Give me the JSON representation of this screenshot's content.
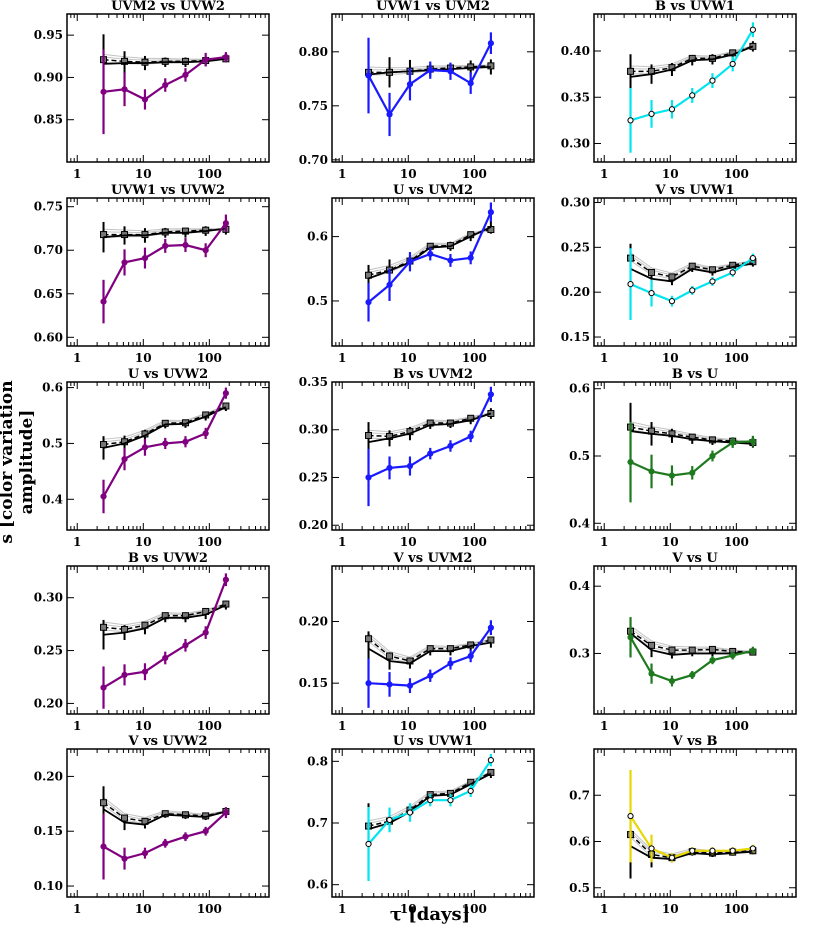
{
  "figure": {
    "ylabel": "s [color variation amplitude]",
    "xlabel": "τ [days]"
  },
  "colors": {
    "purple": "#800080",
    "blue": "#1a1aff",
    "cyan": "#00e5ee",
    "green": "#1f7a1f",
    "yellow": "#e6d800",
    "black": "#000000",
    "gray": "#aaaaaa"
  },
  "chart_data": [
    {
      "type": "line",
      "title": "UVM2 vs UVW2",
      "color": "purple",
      "ylim": [
        0.8,
        0.975
      ],
      "yticks": [
        "0.85",
        "0.90",
        "0.95"
      ],
      "xlim": [
        0.7,
        800
      ],
      "xticks": [
        "1",
        "10",
        "100"
      ],
      "tau": [
        2.5,
        5.2,
        10.6,
        21.5,
        43.5,
        88,
        178
      ],
      "series": [
        {
          "name": "sample",
          "values": [
            0.883,
            0.886,
            0.874,
            0.891,
            0.903,
            0.921,
            0.924
          ],
          "err": [
            0.05,
            0.02,
            0.012,
            0.008,
            0.008,
            0.008,
            0.006
          ]
        },
        {
          "name": "model-solid",
          "values": [
            0.916,
            0.917,
            0.917,
            0.918,
            0.918,
            0.919,
            0.922
          ]
        },
        {
          "name": "model-dashed",
          "values": [
            0.921,
            0.919,
            0.918,
            0.919,
            0.919,
            0.92,
            0.922
          ]
        }
      ]
    },
    {
      "type": "line",
      "title": "UVW1 vs UVM2",
      "color": "blue",
      "ylim": [
        0.698,
        0.835
      ],
      "yticks": [
        "0.70",
        "0.75",
        "0.80"
      ],
      "xlim": [
        0.7,
        800
      ],
      "xticks": [
        "1",
        "10",
        "100"
      ],
      "tau": [
        2.5,
        5.2,
        10.6,
        21.5,
        43.5,
        88,
        178
      ],
      "series": [
        {
          "name": "sample",
          "values": [
            0.778,
            0.742,
            0.77,
            0.783,
            0.782,
            0.771,
            0.808
          ],
          "err": [
            0.035,
            0.02,
            0.015,
            0.008,
            0.008,
            0.01,
            0.01
          ]
        },
        {
          "name": "model-solid",
          "values": [
            0.779,
            0.781,
            0.782,
            0.783,
            0.784,
            0.785,
            0.786
          ]
        },
        {
          "name": "model-dashed",
          "values": [
            0.781,
            0.781,
            0.782,
            0.784,
            0.785,
            0.786,
            0.787
          ]
        }
      ]
    },
    {
      "type": "line",
      "title": "B vs UVW1",
      "color": "cyan",
      "ylim": [
        0.28,
        0.44
      ],
      "yticks": [
        "0.30",
        "0.35",
        "0.40"
      ],
      "xlim": [
        0.7,
        800
      ],
      "xticks": [
        "1",
        "10",
        "100"
      ],
      "tau": [
        2.5,
        5.2,
        10.6,
        21.5,
        43.5,
        88,
        178
      ],
      "series": [
        {
          "name": "sample",
          "values": [
            0.325,
            0.332,
            0.337,
            0.352,
            0.368,
            0.386,
            0.423
          ],
          "err": [
            0.035,
            0.015,
            0.01,
            0.008,
            0.008,
            0.008,
            0.008
          ]
        },
        {
          "name": "model-solid",
          "values": [
            0.372,
            0.375,
            0.38,
            0.39,
            0.391,
            0.396,
            0.405
          ]
        },
        {
          "name": "model-dashed",
          "values": [
            0.378,
            0.378,
            0.382,
            0.392,
            0.392,
            0.398,
            0.405
          ]
        }
      ]
    },
    {
      "type": "line",
      "title": "UVW1 vs UVW2",
      "color": "purple",
      "ylim": [
        0.59,
        0.76
      ],
      "yticks": [
        "0.60",
        "0.65",
        "0.70",
        "0.75"
      ],
      "xlim": [
        0.7,
        800
      ],
      "xticks": [
        "1",
        "10",
        "100"
      ],
      "tau": [
        2.5,
        5.2,
        10.6,
        21.5,
        43.5,
        88,
        178
      ],
      "series": [
        {
          "name": "sample",
          "values": [
            0.641,
            0.686,
            0.691,
            0.705,
            0.706,
            0.7,
            0.731
          ],
          "err": [
            0.025,
            0.015,
            0.012,
            0.008,
            0.008,
            0.008,
            0.01
          ]
        },
        {
          "name": "model-solid",
          "values": [
            0.715,
            0.717,
            0.717,
            0.72,
            0.72,
            0.722,
            0.725
          ]
        },
        {
          "name": "model-dashed",
          "values": [
            0.718,
            0.718,
            0.718,
            0.721,
            0.722,
            0.723,
            0.724
          ]
        }
      ]
    },
    {
      "type": "line",
      "title": "U vs UVM2",
      "color": "blue",
      "ylim": [
        0.43,
        0.66
      ],
      "yticks": [
        "0.5",
        "0.6"
      ],
      "xlim": [
        0.7,
        800
      ],
      "xticks": [
        "1",
        "10",
        "100"
      ],
      "tau": [
        2.5,
        5.2,
        10.6,
        21.5,
        43.5,
        88,
        178
      ],
      "series": [
        {
          "name": "sample",
          "values": [
            0.498,
            0.525,
            0.561,
            0.573,
            0.563,
            0.567,
            0.638
          ],
          "err": [
            0.03,
            0.025,
            0.015,
            0.01,
            0.01,
            0.01,
            0.015
          ]
        },
        {
          "name": "model-solid",
          "values": [
            0.535,
            0.547,
            0.56,
            0.583,
            0.585,
            0.6,
            0.615
          ]
        },
        {
          "name": "model-dashed",
          "values": [
            0.54,
            0.548,
            0.562,
            0.585,
            0.586,
            0.603,
            0.611
          ]
        }
      ]
    },
    {
      "type": "line",
      "title": "V vs UVW1",
      "color": "cyan",
      "ylim": [
        0.14,
        0.305
      ],
      "yticks": [
        "0.15",
        "0.20",
        "0.25",
        "0.30"
      ],
      "xlim": [
        0.7,
        800
      ],
      "xticks": [
        "1",
        "10",
        "100"
      ],
      "tau": [
        2.5,
        5.2,
        10.6,
        21.5,
        43.5,
        88,
        178
      ],
      "series": [
        {
          "name": "sample",
          "values": [
            0.209,
            0.199,
            0.19,
            0.202,
            0.212,
            0.222,
            0.238
          ],
          "err": [
            0.04,
            0.015,
            0.006,
            0.005,
            0.005,
            0.005,
            0.005
          ]
        },
        {
          "name": "model-solid",
          "values": [
            0.226,
            0.215,
            0.212,
            0.226,
            0.222,
            0.228,
            0.232
          ]
        },
        {
          "name": "model-dashed",
          "values": [
            0.238,
            0.222,
            0.217,
            0.229,
            0.225,
            0.23,
            0.234
          ]
        }
      ]
    },
    {
      "type": "line",
      "title": "U vs UVW2",
      "color": "purple",
      "ylim": [
        0.345,
        0.61
      ],
      "yticks": [
        "0.4",
        "0.5",
        "0.6"
      ],
      "xlim": [
        0.7,
        800
      ],
      "xticks": [
        "1",
        "10",
        "100"
      ],
      "tau": [
        2.5,
        5.2,
        10.6,
        21.5,
        43.5,
        88,
        178
      ],
      "series": [
        {
          "name": "sample",
          "values": [
            0.405,
            0.472,
            0.493,
            0.5,
            0.503,
            0.518,
            0.59
          ],
          "err": [
            0.03,
            0.02,
            0.015,
            0.01,
            0.01,
            0.01,
            0.01
          ]
        },
        {
          "name": "model-solid",
          "values": [
            0.492,
            0.5,
            0.514,
            0.534,
            0.535,
            0.548,
            0.565
          ]
        },
        {
          "name": "model-dashed",
          "values": [
            0.498,
            0.503,
            0.517,
            0.536,
            0.537,
            0.551,
            0.567
          ]
        }
      ]
    },
    {
      "type": "line",
      "title": "B vs UVM2",
      "color": "blue",
      "ylim": [
        0.195,
        0.35
      ],
      "yticks": [
        "0.20",
        "0.25",
        "0.30",
        "0.35"
      ],
      "xlim": [
        0.7,
        800
      ],
      "xticks": [
        "1",
        "10",
        "100"
      ],
      "tau": [
        2.5,
        5.2,
        10.6,
        21.5,
        43.5,
        88,
        178
      ],
      "series": [
        {
          "name": "sample",
          "values": [
            0.25,
            0.26,
            0.262,
            0.275,
            0.283,
            0.293,
            0.337
          ],
          "err": [
            0.03,
            0.012,
            0.01,
            0.006,
            0.006,
            0.006,
            0.008
          ]
        },
        {
          "name": "model-solid",
          "values": [
            0.287,
            0.291,
            0.296,
            0.305,
            0.306,
            0.31,
            0.317
          ]
        },
        {
          "name": "model-dashed",
          "values": [
            0.294,
            0.293,
            0.298,
            0.307,
            0.307,
            0.312,
            0.317
          ]
        }
      ]
    },
    {
      "type": "line",
      "title": "B vs U",
      "color": "green",
      "ylim": [
        0.39,
        0.61
      ],
      "yticks": [
        "0.4",
        "0.5",
        "0.6"
      ],
      "xlim": [
        0.7,
        800
      ],
      "xticks": [
        "1",
        "10",
        "100"
      ],
      "tau": [
        2.5,
        5.2,
        10.6,
        21.5,
        43.5,
        88,
        178
      ],
      "series": [
        {
          "name": "sample",
          "values": [
            0.491,
            0.477,
            0.471,
            0.475,
            0.5,
            0.52,
            0.522
          ],
          "err": [
            0.06,
            0.025,
            0.015,
            0.01,
            0.008,
            0.008,
            0.008
          ]
        },
        {
          "name": "model-solid",
          "values": [
            0.537,
            0.533,
            0.53,
            0.525,
            0.522,
            0.52,
            0.518
          ]
        },
        {
          "name": "model-dashed",
          "values": [
            0.543,
            0.537,
            0.533,
            0.528,
            0.524,
            0.522,
            0.52
          ]
        }
      ]
    },
    {
      "type": "line",
      "title": "B vs UVW2",
      "color": "purple",
      "ylim": [
        0.19,
        0.33
      ],
      "yticks": [
        "0.20",
        "0.25",
        "0.30"
      ],
      "xlim": [
        0.7,
        800
      ],
      "xticks": [
        "1",
        "10",
        "100"
      ],
      "tau": [
        2.5,
        5.2,
        10.6,
        21.5,
        43.5,
        88,
        178
      ],
      "series": [
        {
          "name": "sample",
          "values": [
            0.215,
            0.227,
            0.23,
            0.243,
            0.255,
            0.267,
            0.317
          ],
          "err": [
            0.02,
            0.01,
            0.008,
            0.006,
            0.006,
            0.006,
            0.006
          ]
        },
        {
          "name": "model-solid",
          "values": [
            0.265,
            0.267,
            0.271,
            0.281,
            0.281,
            0.284,
            0.293
          ]
        },
        {
          "name": "model-dashed",
          "values": [
            0.272,
            0.27,
            0.274,
            0.283,
            0.283,
            0.287,
            0.294
          ]
        }
      ]
    },
    {
      "type": "line",
      "title": "V vs UVM2",
      "color": "blue",
      "ylim": [
        0.125,
        0.245
      ],
      "yticks": [
        "0.15",
        "0.20"
      ],
      "xlim": [
        0.7,
        800
      ],
      "xticks": [
        "1",
        "10",
        "100"
      ],
      "tau": [
        2.5,
        5.2,
        10.6,
        21.5,
        43.5,
        88,
        178
      ],
      "series": [
        {
          "name": "sample",
          "values": [
            0.15,
            0.149,
            0.148,
            0.156,
            0.166,
            0.172,
            0.195
          ],
          "err": [
            0.02,
            0.01,
            0.006,
            0.005,
            0.005,
            0.005,
            0.006
          ]
        },
        {
          "name": "model-solid",
          "values": [
            0.178,
            0.168,
            0.166,
            0.176,
            0.176,
            0.18,
            0.183
          ]
        },
        {
          "name": "model-dashed",
          "values": [
            0.186,
            0.172,
            0.168,
            0.178,
            0.178,
            0.181,
            0.185
          ]
        }
      ]
    },
    {
      "type": "line",
      "title": "V vs U",
      "color": "green",
      "ylim": [
        0.21,
        0.43
      ],
      "yticks": [
        "0.3",
        "0.4"
      ],
      "xlim": [
        0.7,
        800
      ],
      "xticks": [
        "1",
        "10",
        "100"
      ],
      "tau": [
        2.5,
        5.2,
        10.6,
        21.5,
        43.5,
        88,
        178
      ],
      "series": [
        {
          "name": "sample",
          "values": [
            0.324,
            0.27,
            0.259,
            0.268,
            0.29,
            0.297,
            0.304
          ],
          "err": [
            0.03,
            0.015,
            0.008,
            0.006,
            0.006,
            0.006,
            0.006
          ]
        },
        {
          "name": "model-solid",
          "values": [
            0.33,
            0.305,
            0.298,
            0.3,
            0.3,
            0.3,
            0.302
          ]
        },
        {
          "name": "model-dashed",
          "values": [
            0.333,
            0.312,
            0.305,
            0.305,
            0.306,
            0.303,
            0.302
          ]
        }
      ]
    },
    {
      "type": "line",
      "title": "V vs UVW2",
      "color": "purple",
      "ylim": [
        0.09,
        0.225
      ],
      "yticks": [
        "0.10",
        "0.15",
        "0.20"
      ],
      "xlim": [
        0.7,
        800
      ],
      "xticks": [
        "1",
        "10",
        "100"
      ],
      "tau": [
        2.5,
        5.2,
        10.6,
        21.5,
        43.5,
        88,
        178
      ],
      "series": [
        {
          "name": "sample",
          "values": [
            0.136,
            0.125,
            0.13,
            0.139,
            0.145,
            0.15,
            0.167
          ],
          "err": [
            0.03,
            0.01,
            0.005,
            0.004,
            0.004,
            0.004,
            0.005
          ]
        },
        {
          "name": "model-solid",
          "values": [
            0.17,
            0.158,
            0.156,
            0.165,
            0.164,
            0.163,
            0.168
          ]
        },
        {
          "name": "model-dashed",
          "values": [
            0.176,
            0.162,
            0.159,
            0.166,
            0.165,
            0.164,
            0.168
          ]
        }
      ]
    },
    {
      "type": "line",
      "title": "U vs UVW1",
      "color": "cyan",
      "ylim": [
        0.58,
        0.82
      ],
      "yticks": [
        "0.6",
        "0.7",
        "0.8"
      ],
      "xlim": [
        0.7,
        800
      ],
      "xticks": [
        "1",
        "10",
        "100"
      ],
      "tau": [
        2.5,
        5.2,
        10.6,
        21.5,
        43.5,
        88,
        178
      ],
      "series": [
        {
          "name": "sample",
          "values": [
            0.666,
            0.705,
            0.717,
            0.737,
            0.737,
            0.752,
            0.802
          ],
          "err": [
            0.06,
            0.02,
            0.015,
            0.01,
            0.01,
            0.01,
            0.01
          ]
        },
        {
          "name": "model-solid",
          "values": [
            0.69,
            0.7,
            0.718,
            0.744,
            0.746,
            0.763,
            0.78
          ]
        },
        {
          "name": "model-dashed",
          "values": [
            0.695,
            0.703,
            0.721,
            0.746,
            0.748,
            0.766,
            0.782
          ]
        }
      ]
    },
    {
      "type": "line",
      "title": "V vs B",
      "color": "yellow",
      "ylim": [
        0.48,
        0.8
      ],
      "yticks": [
        "0.5",
        "0.6",
        "0.7"
      ],
      "xlim": [
        0.7,
        800
      ],
      "xticks": [
        "1",
        "10",
        "100"
      ],
      "tau": [
        2.5,
        5.2,
        10.6,
        21.5,
        43.5,
        88,
        178
      ],
      "series": [
        {
          "name": "sample",
          "values": [
            0.655,
            0.585,
            0.565,
            0.58,
            0.58,
            0.58,
            0.585
          ],
          "err": [
            0.1,
            0.03,
            0.01,
            0.008,
            0.008,
            0.008,
            0.008
          ]
        },
        {
          "name": "model-solid",
          "values": [
            0.59,
            0.565,
            0.562,
            0.575,
            0.572,
            0.575,
            0.578
          ]
        },
        {
          "name": "model-dashed",
          "values": [
            0.615,
            0.572,
            0.565,
            0.578,
            0.575,
            0.577,
            0.58
          ]
        }
      ]
    }
  ]
}
